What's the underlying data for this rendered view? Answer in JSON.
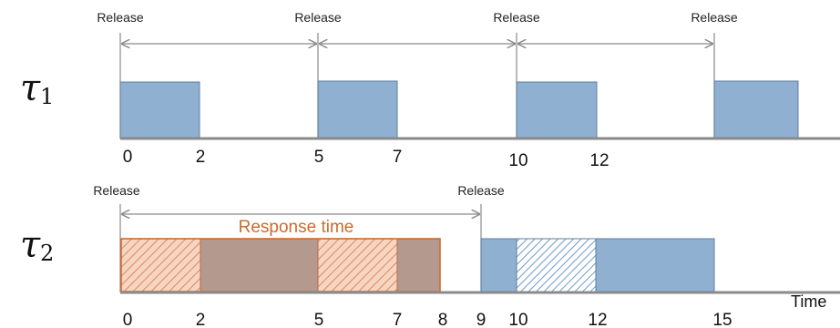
{
  "labels": {
    "release": "Release",
    "response_time": "Response time",
    "time_axis": "Time"
  },
  "tasks": [
    {
      "symbol": "τ",
      "subscript": "1",
      "ticks": [
        "0",
        "2",
        "5",
        "7",
        "10",
        "12"
      ],
      "release_times": [
        0,
        5,
        10,
        15
      ]
    },
    {
      "symbol": "τ",
      "subscript": "2",
      "ticks": [
        "0",
        "2",
        "5",
        "7",
        "8",
        "9",
        "10",
        "12",
        "15"
      ],
      "release_times": [
        0,
        9
      ]
    }
  ],
  "colors": {
    "job_fill": "#8fb0d1",
    "job_stroke": "#5e7f9e",
    "preempted_fill": "#b4998f",
    "hatch_orange": "#e8a07a",
    "hatch_blue": "#6f9cc9",
    "response": "#cf6a2d",
    "axis": "#8a8a8a"
  }
}
